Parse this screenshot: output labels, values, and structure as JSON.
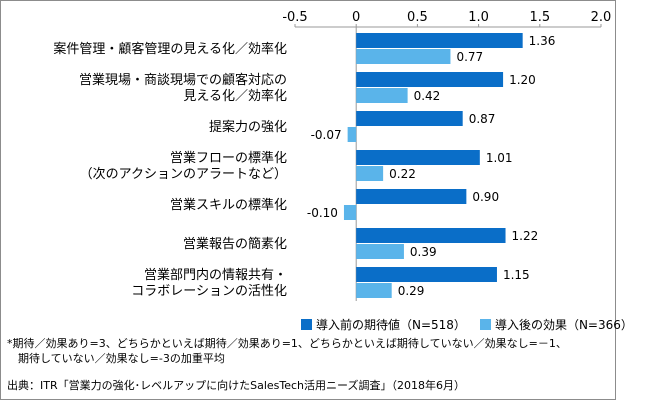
{
  "chart_data": {
    "type": "bar",
    "orientation": "horizontal",
    "categories": [
      [
        "案件管理・顧客管理の見える化／効率化"
      ],
      [
        "営業現場・商談現場での顧客対応の",
        "見える化／効率化"
      ],
      [
        "提案力の強化"
      ],
      [
        "営業フローの標準化",
        "（次のアクションのアラートなど）"
      ],
      [
        "営業スキルの標準化"
      ],
      [
        "営業報告の簡素化"
      ],
      [
        "営業部門内の情報共有・",
        "コラボレーションの活性化"
      ]
    ],
    "series": [
      {
        "name": "導入前の期待値（N=518）",
        "color": "#0a6ec8",
        "values": [
          1.36,
          1.2,
          0.87,
          1.01,
          0.9,
          1.22,
          1.15
        ],
        "labels": [
          "1.36",
          "1.20",
          "0.87",
          "1.01",
          "0.90",
          "1.22",
          "1.15"
        ]
      },
      {
        "name": "導入後の効果（N=366）",
        "color": "#5ab4ea",
        "values": [
          0.77,
          0.42,
          -0.07,
          0.22,
          -0.1,
          0.39,
          0.29
        ],
        "labels": [
          "0.77",
          "0.42",
          "-0.07",
          "0.22",
          "-0.10",
          "0.39",
          "0.29"
        ]
      }
    ],
    "xlim": [
      -0.5,
      2.0
    ],
    "xticks": [
      -0.5,
      0,
      0.5,
      1.0,
      1.5,
      2.0
    ],
    "xtick_labels": [
      "-0.5",
      "0",
      "0.5",
      "1.0",
      "1.5",
      "2.0"
    ],
    "axis_position": "top",
    "grid": false,
    "legend_position": "bottom"
  },
  "legend": {
    "before": "導入前の期待値（N=518）",
    "after": "導入後の効果（N=366）"
  },
  "note": {
    "line1": "*期待／効果あり=3、どちらかといえば期待／効果あり=1、どちらかといえば期待していない／効果なし=－1、",
    "line2": "　期待していない／効果なし=-3の加重平均"
  },
  "source": "出典：ITR「営業力の強化･レベルアップに向けたSalesTech活用ニーズ調査」（2018年6月）"
}
